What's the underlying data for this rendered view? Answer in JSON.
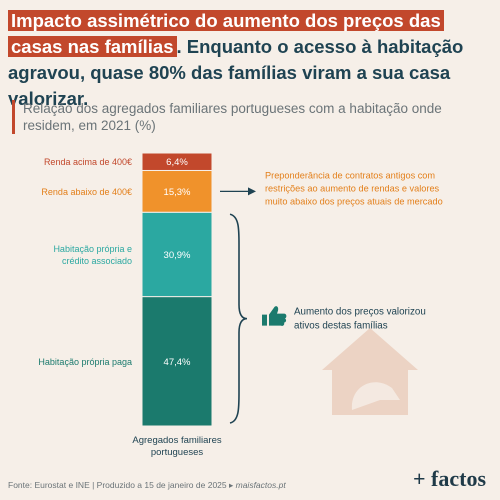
{
  "header": {
    "title_highlight": "Impacto assimétrico do aumento dos preços das casas nas famílias",
    "title_rest": ". Enquanto o acesso à habitação agravou, quase 80% das famílias viram a sua casa valorizar.",
    "subtitle": "Relação dos agregados familiares portugueses com a habitação onde residem, em 2021 (%)"
  },
  "chart_data": {
    "type": "bar",
    "stacked": true,
    "categories": [
      "Agregados familiares portugueses"
    ],
    "xlabel": "Agregados familiares portugueses",
    "series": [
      {
        "name": "Habitação própria paga",
        "value": 47.4,
        "label": "47,4%",
        "color": "#1b7a6d",
        "label_color": "#1b7a6d"
      },
      {
        "name": "Habitação própria e crédito associado",
        "value": 30.9,
        "label": "30,9%",
        "color": "#2ba8a1",
        "label_color": "#2ba8a1"
      },
      {
        "name": "Renda abaixo de 400€",
        "value": 15.3,
        "label": "15,3%",
        "color": "#f0922b",
        "label_color": "#e37f1a"
      },
      {
        "name": "Renda acima de 400€",
        "value": 6.4,
        "label": "6,4%",
        "color": "#c2482c",
        "label_color": "#c2482c"
      }
    ],
    "annotations": [
      {
        "text": [
          "Preponderância de contratos antigos com",
          "restrições ao aumento de rendas e valores",
          "muito abaixo dos preços atuais de mercado"
        ],
        "color": "#e37f1a"
      },
      {
        "text": [
          "Aumento dos preços valorizou",
          "ativos destas famílias"
        ],
        "color": "#1f4352"
      }
    ]
  },
  "icons": {
    "arrow": "arrow-right-icon",
    "brace": "curly-brace-icon",
    "thumb": "thumbs-up-icon",
    "house": "house-hand-icon"
  },
  "footer": {
    "source": "Fonte: Eurostat e INE | Produzido a 15 de janeiro de 2025 ▸ ",
    "site": "maisfactos.pt",
    "logo": "+ factos"
  }
}
